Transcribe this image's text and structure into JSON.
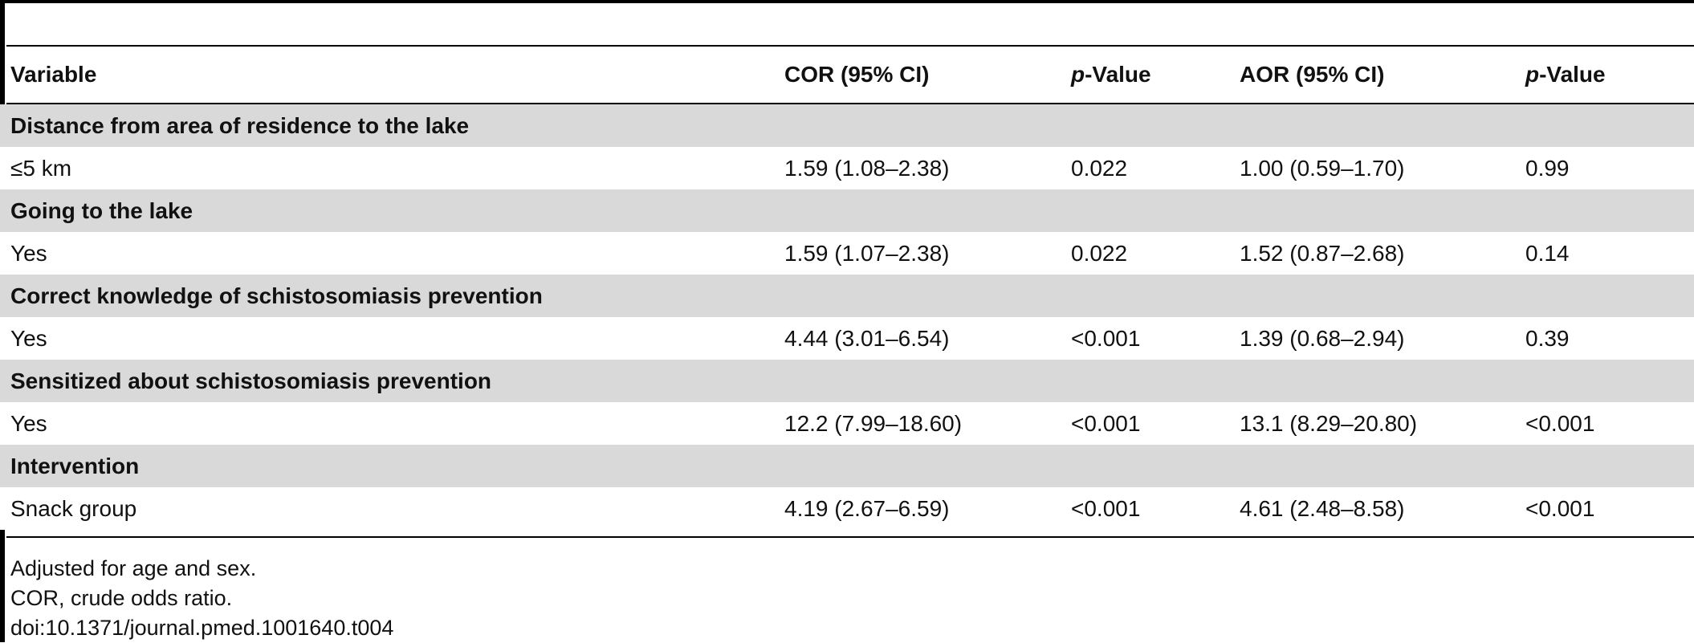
{
  "table": {
    "headers": {
      "variable": "Variable",
      "cor": "COR (95% CI)",
      "p1_italic": "p",
      "p1_rest": "-Value",
      "aor": "AOR (95% CI)",
      "p2_italic": "p",
      "p2_rest": "-Value"
    },
    "groups": [
      {
        "title": "Distance from area of residence to the lake",
        "row": {
          "label": "≤5 km",
          "cor": "1.59 (1.08–2.38)",
          "p1": "0.022",
          "aor": "1.00 (0.59–1.70)",
          "p2": "0.99"
        }
      },
      {
        "title": "Going to the lake",
        "row": {
          "label": "Yes",
          "cor": "1.59 (1.07–2.38)",
          "p1": "0.022",
          "aor": "1.52 (0.87–2.68)",
          "p2": "0.14"
        }
      },
      {
        "title": "Correct knowledge of schistosomiasis prevention",
        "row": {
          "label": "Yes",
          "cor": "4.44 (3.01–6.54)",
          "p1": "<0.001",
          "aor": "1.39 (0.68–2.94)",
          "p2": "0.39"
        }
      },
      {
        "title": "Sensitized about schistosomiasis prevention",
        "row": {
          "label": "Yes",
          "cor": "12.2 (7.99–18.60)",
          "p1": "<0.001",
          "aor": "13.1 (8.29–20.80)",
          "p2": "<0.001"
        }
      },
      {
        "title": "Intervention",
        "row": {
          "label": "Snack group",
          "cor": "4.19 (2.67–6.59)",
          "p1": "<0.001",
          "aor": "4.61 (2.48–8.58)",
          "p2": "<0.001"
        }
      }
    ]
  },
  "footnotes": {
    "line1": "Adjusted for age and sex.",
    "line2": "COR, crude odds ratio.",
    "line3": "doi:10.1371/journal.pmed.1001640.t004"
  }
}
